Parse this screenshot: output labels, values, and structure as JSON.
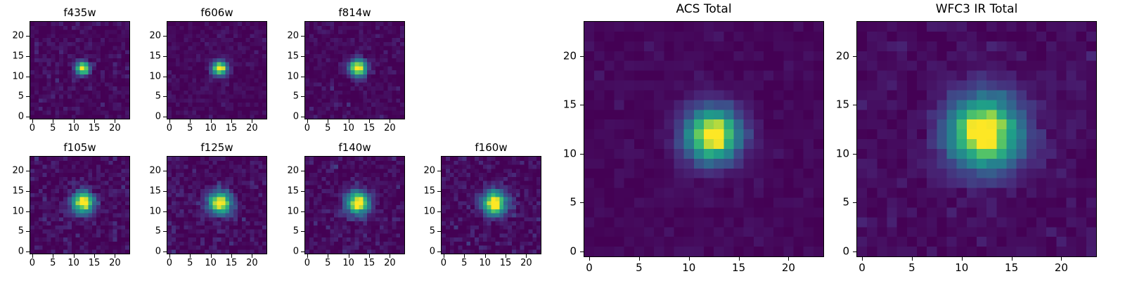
{
  "figure": {
    "background": "#ffffff",
    "text_color": "#000000"
  },
  "chart_data": {
    "type": "heatmap",
    "description": "Grid of postage-stamp image cutouts of a point source shown in individual HST filters plus combined ACS and WFC3 IR totals, rendered with a viridis colormap",
    "colormap": "viridis",
    "colormap_stops": [
      [
        0.0,
        "#440154"
      ],
      [
        0.125,
        "#482878"
      ],
      [
        0.25,
        "#3e4a89"
      ],
      [
        0.375,
        "#31688e"
      ],
      [
        0.5,
        "#26828e"
      ],
      [
        0.625,
        "#1f9e89"
      ],
      [
        0.75,
        "#35b779"
      ],
      [
        0.875,
        "#6dcd59"
      ],
      [
        1.0,
        "#fde725"
      ]
    ],
    "grid_size": 24,
    "xticks": [
      0,
      5,
      10,
      15,
      20
    ],
    "yticks": [
      0,
      5,
      10,
      15,
      20
    ],
    "xlim": [
      -0.5,
      23.5
    ],
    "ylim": [
      -0.5,
      23.5
    ],
    "grid": false,
    "legend": "none",
    "panels": [
      {
        "title": "f435w",
        "center": [
          12.2,
          12.0
        ],
        "sigma": 1.15,
        "peak": 1.1,
        "noise": 0.045,
        "base": 0.02,
        "seed": 11
      },
      {
        "title": "f606w",
        "center": [
          12.2,
          12.0
        ],
        "sigma": 1.25,
        "peak": 1.1,
        "noise": 0.035,
        "base": 0.02,
        "seed": 22
      },
      {
        "title": "f814w",
        "center": [
          12.3,
          12.1
        ],
        "sigma": 1.5,
        "peak": 1.1,
        "noise": 0.04,
        "base": 0.02,
        "seed": 33
      },
      {
        "title": "f105w",
        "center": [
          12.2,
          12.1
        ],
        "sigma": 1.9,
        "peak": 1.1,
        "noise": 0.055,
        "base": 0.03,
        "seed": 44
      },
      {
        "title": "f125w",
        "center": [
          12.2,
          12.0
        ],
        "sigma": 2.0,
        "peak": 1.1,
        "noise": 0.055,
        "base": 0.03,
        "seed": 55
      },
      {
        "title": "f140w",
        "center": [
          12.2,
          12.0
        ],
        "sigma": 2.0,
        "peak": 1.1,
        "noise": 0.05,
        "base": 0.03,
        "seed": 66
      },
      {
        "title": "f160w",
        "center": [
          12.3,
          12.0
        ],
        "sigma": 2.1,
        "peak": 1.1,
        "noise": 0.055,
        "base": 0.03,
        "seed": 77
      },
      {
        "title": "ACS Total",
        "center": [
          12.4,
          11.9
        ],
        "sigma": 1.9,
        "peak": 1.1,
        "noise": 0.02,
        "base": 0.02,
        "seed": 88
      },
      {
        "title": "WFC3 IR Total",
        "center": [
          12.3,
          12.2
        ],
        "sigma": 2.6,
        "peak": 1.1,
        "noise": 0.03,
        "base": 0.03,
        "seed": 99
      }
    ]
  }
}
